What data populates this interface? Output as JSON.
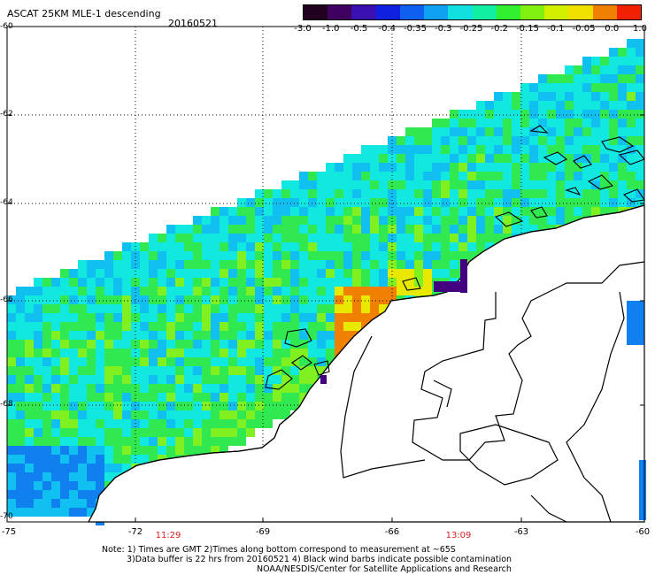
{
  "title": "ASCAT 25KM MLE-1 descending",
  "date": "20160521",
  "colorbar": {
    "tick_labels": [
      "-3.0",
      "-1.0",
      "-0.5",
      "-0.4",
      "-0.35",
      "-0.3",
      "-0.25",
      "-0.2",
      "-0.15",
      "-0.1",
      "-0.05",
      "0.0",
      "1.0"
    ],
    "colors": [
      "#200020",
      "#400060",
      "#3a10b0",
      "#1020e0",
      "#1060f0",
      "#10a0f0",
      "#10e0e0",
      "#10f0a0",
      "#30f030",
      "#80f010",
      "#d0f000",
      "#f0e000",
      "#f08000",
      "#f02000"
    ]
  },
  "axes": {
    "y_labels": [
      "-60",
      "-62",
      "-64",
      "-66",
      "-68",
      "-70"
    ],
    "x_labels": [
      "-75",
      "-72",
      "-69",
      "-66",
      "-63",
      "-60"
    ]
  },
  "times": [
    "11:29",
    "13:09"
  ],
  "notes": [
    "Note: 1) Times are GMT 2)Times along bottom correspond to measurement at ~65S",
    "3)Data buffer is 22 hrs from 20160521 4) Black wind barbs indicate possible contamination",
    "NOAA/NESDIS/Center for Satellite Applications and Research"
  ],
  "palette": {
    "deep_blue": "#1080f0",
    "blue": "#10c0f0",
    "cyan": "#10e8e0",
    "green": "#30e850",
    "lime": "#80f020",
    "yellow": "#e8e800",
    "orange": "#f08000",
    "purple": "#400080"
  }
}
